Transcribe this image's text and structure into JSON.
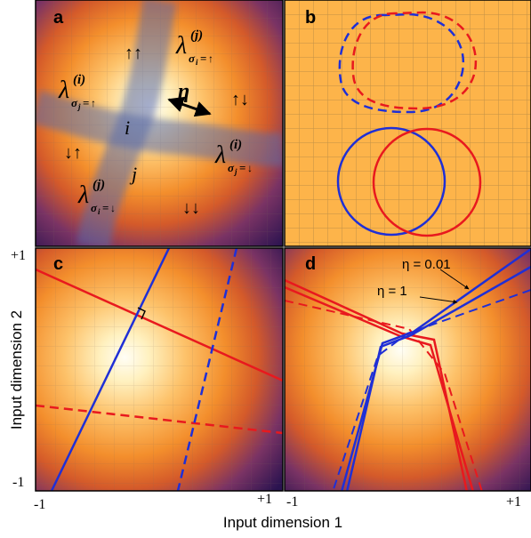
{
  "panels": {
    "a": {
      "label": "a",
      "spin_states": {
        "up_up": "↑↑",
        "up_down": "↑↓",
        "down_up": "↓↑",
        "down_down": "↓↓"
      },
      "lambda_symbol": "λ",
      "lambda_labels": [
        {
          "sup": "(j)",
          "sub": "σ",
          "subsub": "i",
          "spin": "↑"
        },
        {
          "sup": "(i)",
          "sub": "σ",
          "subsub": "j",
          "spin": "↑"
        },
        {
          "sup": "(i)",
          "sub": "σ",
          "subsub": "j",
          "spin": "↓"
        },
        {
          "sup": "(j)",
          "sub": "σ",
          "subsub": "i",
          "spin": "↓"
        }
      ],
      "eta_label": "η",
      "neuron_i": "i",
      "neuron_j": "j"
    },
    "b": {
      "label": "b"
    },
    "c": {
      "label": "c"
    },
    "d": {
      "label": "d",
      "annotations": {
        "eta_small": "η = 0.01",
        "eta_large": "η = 1"
      }
    }
  },
  "axes": {
    "ylabel": "Input dimension 2",
    "xlabel": "Input dimension 1",
    "c_x_min": "-1",
    "c_x_max": "+1",
    "d_x_min": "-1",
    "d_x_max": "+1",
    "y_max": "+1",
    "y_min": "-1"
  },
  "colors": {
    "red": "#e8191e",
    "blue": "#1f2fd6",
    "background_orange": "#fdb44a",
    "grid": "#b48a55"
  }
}
